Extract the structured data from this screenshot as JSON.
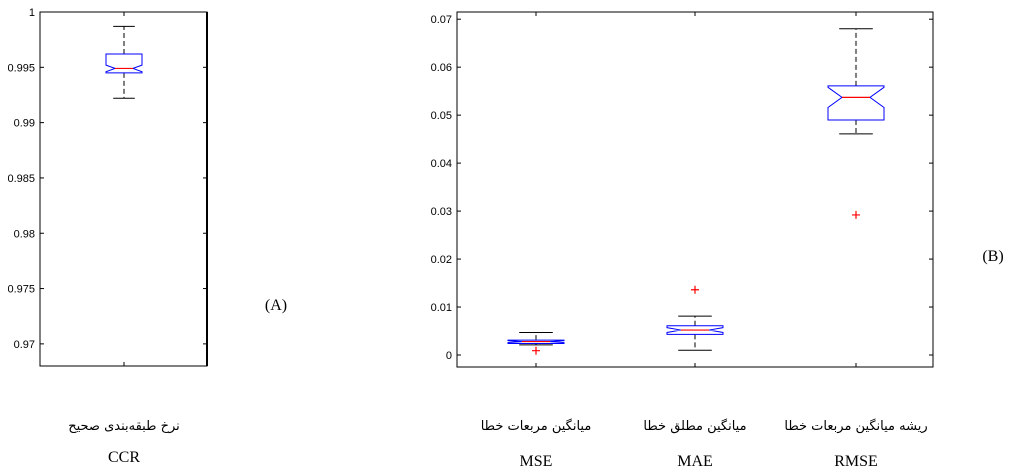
{
  "chart_data": [
    {
      "type": "box",
      "panel_label": "(A)",
      "ylim": [
        0.968,
        1.0
      ],
      "yticks": [
        0.97,
        0.975,
        0.98,
        0.985,
        0.99,
        0.995,
        1
      ],
      "ytick_labels": [
        "0.97",
        "0.975",
        "0.98",
        "0.985",
        "0.99",
        "0.995",
        "1"
      ],
      "grid": false,
      "notched": true,
      "categories": [
        {
          "label_fa": "نرخ طبقه‌بندی صحیح",
          "label_en": "CCR"
        }
      ],
      "boxes": [
        {
          "whisker_low": 0.9922,
          "q1": 0.9945,
          "median": 0.9949,
          "q3": 0.9962,
          "whisker_high": 0.9987,
          "notch_low": 0.9946,
          "notch_high": 0.9952,
          "outliers": []
        }
      ]
    },
    {
      "type": "box",
      "panel_label": "(B)",
      "ylim": [
        -0.0025,
        0.0715
      ],
      "yticks": [
        0,
        0.01,
        0.02,
        0.03,
        0.04,
        0.05,
        0.06,
        0.07
      ],
      "ytick_labels": [
        "0",
        "0.01",
        "0.02",
        "0.03",
        "0.04",
        "0.05",
        "0.06",
        "0.07"
      ],
      "grid": false,
      "notched": true,
      "categories": [
        {
          "label_fa": "میانگین مربعات خطا",
          "label_en": "MSE"
        },
        {
          "label_fa": "میانگین مطلق خطا",
          "label_en": "MAE"
        },
        {
          "label_fa": "ریشه میانگین مربعات خطا",
          "label_en": "RMSE"
        }
      ],
      "boxes": [
        {
          "whisker_low": 0.0021,
          "q1": 0.0024,
          "median": 0.0028,
          "q3": 0.0031,
          "whisker_high": 0.0047,
          "notch_low": 0.0026,
          "notch_high": 0.003,
          "outliers": [
            0.0009
          ]
        },
        {
          "whisker_low": 0.001,
          "q1": 0.0043,
          "median": 0.0052,
          "q3": 0.0061,
          "whisker_high": 0.0081,
          "notch_low": 0.0047,
          "notch_high": 0.0057,
          "outliers": [
            0.0136
          ]
        },
        {
          "whisker_low": 0.0461,
          "q1": 0.049,
          "median": 0.0537,
          "q3": 0.0561,
          "whisker_high": 0.068,
          "notch_low": 0.0516,
          "notch_high": 0.0558,
          "outliers": [
            0.0292
          ]
        }
      ]
    }
  ],
  "colors": {
    "box": "#0000ff",
    "median": "#ff0000",
    "outlier": "#ff0000",
    "axis": "#000000",
    "whisker": "#000000"
  }
}
